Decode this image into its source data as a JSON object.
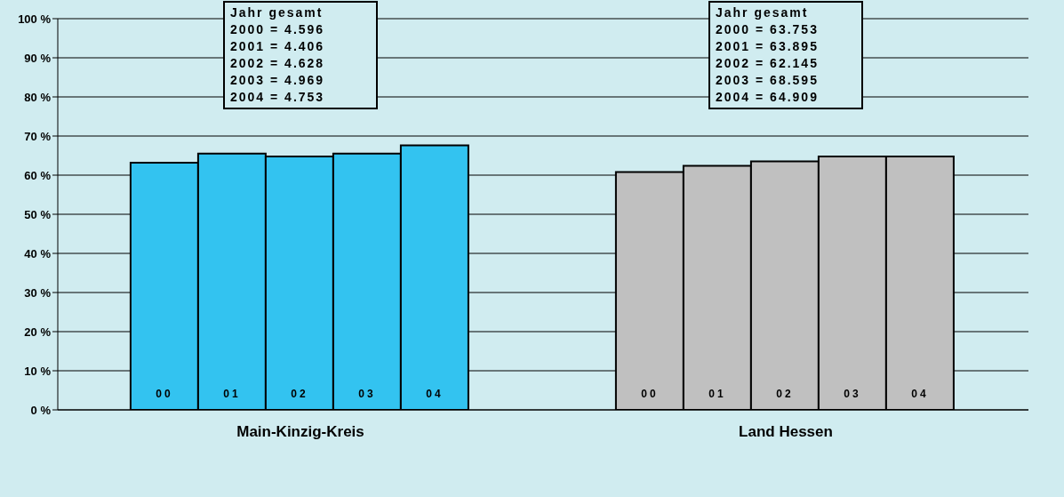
{
  "chart_data": {
    "type": "bar",
    "categories": [
      "Main-Kinzig-Kreis",
      "Land Hessen"
    ],
    "series": [
      {
        "name": "00",
        "colors": [
          "#33c3f0",
          "#c0c0c0"
        ],
        "values": [
          63.2,
          60.8
        ]
      },
      {
        "name": "01",
        "colors": [
          "#33c3f0",
          "#c0c0c0"
        ],
        "values": [
          65.5,
          62.4
        ]
      },
      {
        "name": "02",
        "colors": [
          "#33c3f0",
          "#c0c0c0"
        ],
        "values": [
          64.8,
          63.5
        ]
      },
      {
        "name": "03",
        "colors": [
          "#33c3f0",
          "#c0c0c0"
        ],
        "values": [
          65.5,
          64.8
        ]
      },
      {
        "name": "04",
        "colors": [
          "#33c3f0",
          "#c0c0c0"
        ],
        "values": [
          67.6,
          64.8
        ]
      }
    ],
    "ylim": [
      0,
      100
    ],
    "yticks": [
      {
        "value": 0,
        "label": "0 %"
      },
      {
        "value": 10,
        "label": "10 %"
      },
      {
        "value": 20,
        "label": "20 %"
      },
      {
        "value": 30,
        "label": "30 %"
      },
      {
        "value": 40,
        "label": "40 %"
      },
      {
        "value": 50,
        "label": "50 %"
      },
      {
        "value": 60,
        "label": "60 %"
      },
      {
        "value": 70,
        "label": "70 %"
      },
      {
        "value": 80,
        "label": "80 %"
      },
      {
        "value": 90,
        "label": "90 %"
      },
      {
        "value": 100,
        "label": "100 %"
      }
    ],
    "grid": "y",
    "legend": false,
    "annotations": [
      "Jahr gesamt\n2000 = 4.596\n2001 = 4.406\n2002 = 4.628\n2003 = 4.969\n2004 = 4.753",
      "Jahr gesamt\n2000 = 63.753\n2001 = 63.895\n2002 = 62.145\n2003 = 68.595\n2004 = 64.909"
    ]
  }
}
